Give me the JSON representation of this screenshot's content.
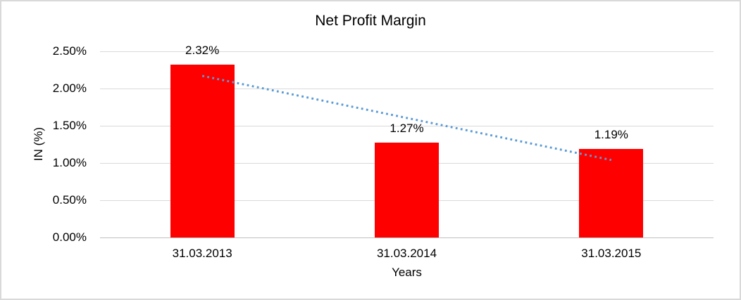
{
  "chart_data": {
    "type": "bar",
    "title": "Net Profit Margin",
    "xlabel": "Years",
    "ylabel": "IN (%)",
    "categories": [
      "31.03.2013",
      "31.03.2014",
      "31.03.2015"
    ],
    "values": [
      2.32,
      1.27,
      1.19
    ],
    "data_labels": [
      "2.32%",
      "1.27%",
      "1.19%"
    ],
    "ylim": [
      0,
      2.5
    ],
    "ytick_step": 0.5,
    "ytick_labels": [
      "0.00%",
      "0.50%",
      "1.00%",
      "1.50%",
      "2.00%",
      "2.50%"
    ],
    "grid": true,
    "legend_position": "none",
    "colors": {
      "bar": "#FF0000",
      "trendline": "#5B9BD5",
      "gridline": "#D9D9D9",
      "axis_line": "#BFBFBF",
      "text": "#000000",
      "background": "#FFFFFF",
      "border": "#D9D9D9"
    },
    "trendline": {
      "type": "linear",
      "style": "dotted",
      "start_value": 2.17,
      "end_value": 1.04
    }
  }
}
